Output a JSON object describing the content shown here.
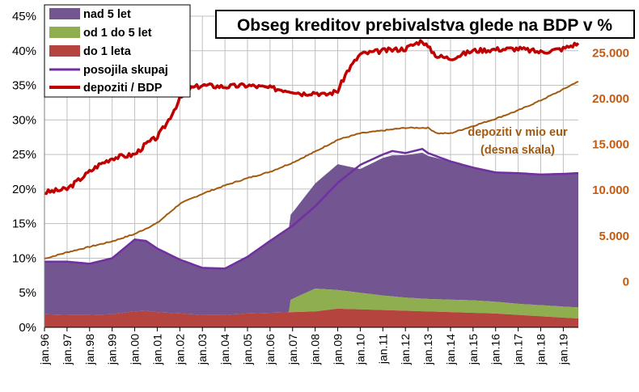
{
  "chart_data": {
    "type": "area",
    "title": "Obseg kreditov prebivalstva glede na BDP v %",
    "annotation": [
      "depoziti v mio eur",
      "(desna skala)"
    ],
    "x_ticks": [
      "jan.96",
      "jan.97",
      "jan.98",
      "jan.99",
      "jan.00",
      "jan.01",
      "jan.02",
      "jan.03",
      "jan.04",
      "jan.05",
      "jan.06",
      "jan.07",
      "jan.08",
      "jan.09",
      "jan.10",
      "jan.11",
      "jan.12",
      "jan.13",
      "jan.14",
      "jan.15",
      "jan.16",
      "jan.17",
      "jan.18",
      "jan.19"
    ],
    "y_left": {
      "ticks": [
        "0%",
        "5%",
        "10%",
        "15%",
        "20%",
        "25%",
        "30%",
        "35%",
        "40%",
        "45%"
      ],
      "ylim": [
        0,
        45
      ]
    },
    "y_right": {
      "ticks": [
        "0",
        "5.000",
        "10.000",
        "15.000",
        "20.000",
        "25.000"
      ],
      "ylim": [
        -5000,
        29000
      ]
    },
    "legend_position": "top-left",
    "colors": {
      "nad5": "#735592",
      "od1do5": "#8fae4f",
      "do1": "#b5443e",
      "skupaj": "#7030a0",
      "depBDP": "#c00000",
      "depMio": "#a35a10"
    },
    "series": [
      {
        "name": "nad 5 let",
        "key": "nad5",
        "kind": "stacked-area",
        "x": [
          "1996-01",
          "1997-01",
          "1998-01",
          "1999-01",
          "2000-01",
          "2000-07",
          "2001-01",
          "2002-01",
          "2003-01",
          "2004-01",
          "2005-01",
          "2006-01",
          "2007-01",
          "2008-01",
          "2009-01",
          "2010-01",
          "2011-01",
          "2011-06",
          "2012-01",
          "2012-10",
          "2013-01",
          "2014-01",
          "2015-01",
          "2016-01",
          "2017-01",
          "2018-01",
          "2019-01",
          "2019-08"
        ],
        "values": [
          7.6,
          7.7,
          7.4,
          8.1,
          10.4,
          10.1,
          9.2,
          7.8,
          6.8,
          6.7,
          8.2,
          10.4,
          12.5,
          15.2,
          18.2,
          17.9,
          19.9,
          20.4,
          20.6,
          21.1,
          20.7,
          20.0,
          19.2,
          18.7,
          19.0,
          19.0,
          19.3,
          19.4
        ]
      },
      {
        "name": "od 1 do 5 let",
        "key": "od1do5",
        "kind": "stacked-area",
        "x": [
          "1996-01",
          "2006-11",
          "2006-12",
          "2007-06",
          "2008-01",
          "2009-01",
          "2010-01",
          "2011-01",
          "2012-01",
          "2013-01",
          "2014-01",
          "2015-01",
          "2016-01",
          "2017-01",
          "2018-01",
          "2019-01",
          "2019-08"
        ],
        "values": [
          0,
          0,
          1.8,
          2.5,
          3.3,
          2.7,
          2.4,
          2.1,
          1.9,
          1.8,
          1.8,
          1.8,
          1.7,
          1.6,
          1.6,
          1.6,
          1.6
        ]
      },
      {
        "name": "do 1 leta",
        "key": "do1",
        "kind": "stacked-area",
        "x": [
          "1996-01",
          "1997-01",
          "1998-01",
          "1999-01",
          "2000-01",
          "2000-07",
          "2001-01",
          "2002-01",
          "2003-01",
          "2004-01",
          "2005-01",
          "2006-01",
          "2007-01",
          "2008-01",
          "2009-01",
          "2010-01",
          "2011-01",
          "2012-01",
          "2013-01",
          "2014-01",
          "2015-01",
          "2016-01",
          "2017-01",
          "2018-01",
          "2019-01",
          "2019-08"
        ],
        "values": [
          1.9,
          1.8,
          1.8,
          1.9,
          2.3,
          2.4,
          2.2,
          2.0,
          1.8,
          1.8,
          2.0,
          2.1,
          2.2,
          2.3,
          2.7,
          2.6,
          2.5,
          2.4,
          2.3,
          2.2,
          2.1,
          2.0,
          1.8,
          1.6,
          1.4,
          1.3
        ]
      },
      {
        "name": "posojila skupaj",
        "key": "skupaj",
        "kind": "line",
        "x": [
          "1996-01",
          "1997-01",
          "1998-01",
          "1999-01",
          "2000-01",
          "2000-07",
          "2001-01",
          "2002-01",
          "2003-01",
          "2004-01",
          "2005-01",
          "2006-01",
          "2007-01",
          "2008-01",
          "2009-01",
          "2010-01",
          "2011-01",
          "2011-06",
          "2012-01",
          "2012-10",
          "2013-01",
          "2014-01",
          "2015-01",
          "2016-01",
          "2017-01",
          "2018-01",
          "2019-01",
          "2019-08"
        ],
        "values": [
          9.5,
          9.5,
          9.2,
          10.0,
          12.7,
          12.5,
          11.4,
          9.8,
          8.6,
          8.5,
          10.2,
          12.5,
          14.7,
          17.5,
          20.9,
          23.5,
          25.0,
          25.5,
          25.2,
          25.8,
          25.2,
          24.0,
          23.1,
          22.4,
          22.3,
          22.1,
          22.2,
          22.3
        ]
      },
      {
        "name": "depoziti / BDP",
        "key": "depBDP",
        "kind": "line",
        "x": [
          "1996-01",
          "1997-01",
          "1998-01",
          "1998-06",
          "1999-01",
          "2000-01",
          "2000-07",
          "2001-01",
          "2001-06",
          "2002-01",
          "2002-06",
          "2003-01",
          "2004-01",
          "2005-01",
          "2006-01",
          "2007-01",
          "2007-06",
          "2008-01",
          "2008-06",
          "2009-01",
          "2009-06",
          "2010-01",
          "2011-01",
          "2012-01",
          "2012-10",
          "2013-01",
          "2013-06",
          "2014-01",
          "2015-01",
          "2016-01",
          "2017-01",
          "2018-01",
          "2019-01",
          "2019-08"
        ],
        "values": [
          19.5,
          20.0,
          22.5,
          23.5,
          24.5,
          25.0,
          26.5,
          27.5,
          29.5,
          33.0,
          34.5,
          35.0,
          34.8,
          35.0,
          34.6,
          34.2,
          33.8,
          34.0,
          33.6,
          34.2,
          37.0,
          39.5,
          40.0,
          40.3,
          41.5,
          40.5,
          39.2,
          38.9,
          40.0,
          40.2,
          40.3,
          39.8,
          40.3,
          41.0
        ]
      },
      {
        "name": "depoziti v mio eur",
        "key": "depMio",
        "kind": "line",
        "axis": "right",
        "x": [
          "1996-01",
          "1997-01",
          "1998-01",
          "1999-01",
          "2000-01",
          "2001-01",
          "2002-01",
          "2003-01",
          "2004-01",
          "2005-01",
          "2006-01",
          "2007-01",
          "2008-01",
          "2009-01",
          "2010-01",
          "2011-01",
          "2012-01",
          "2013-01",
          "2013-06",
          "2014-01",
          "2015-01",
          "2016-01",
          "2017-01",
          "2018-01",
          "2019-01",
          "2019-08"
        ],
        "values": [
          2500,
          3200,
          3800,
          4400,
          5200,
          6400,
          8500,
          9600,
          10500,
          11300,
          12000,
          13000,
          14200,
          15500,
          16200,
          16500,
          16800,
          16800,
          16200,
          16200,
          17000,
          17800,
          18700,
          19800,
          21000,
          21800
        ]
      }
    ]
  }
}
